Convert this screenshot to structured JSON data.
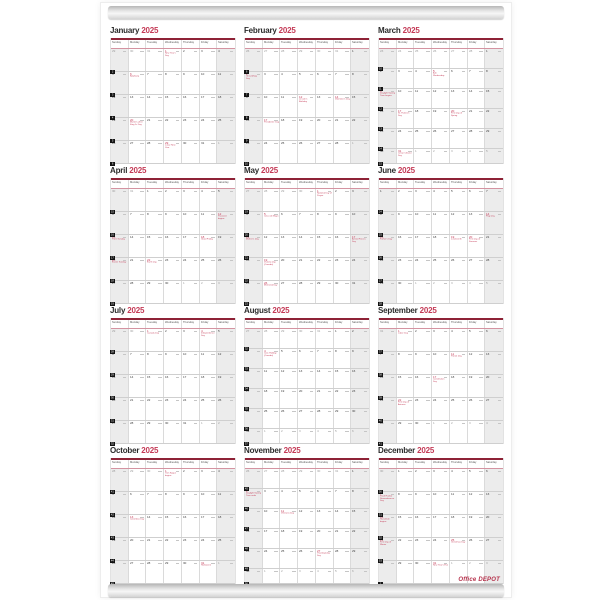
{
  "brand": "Office DEPOT",
  "year": "2025",
  "colors": {
    "accent_red": "#c43a56",
    "header_rule": "#8e2236",
    "badge_bg": "#141414",
    "weekend_bg": "#ececec",
    "grid_line": "#cfcfcf",
    "out_month_text": "#9b9b9b"
  },
  "day_headers": [
    "Sunday",
    "Monday",
    "Tuesday",
    "Wednesday",
    "Thursday",
    "Friday",
    "Saturday"
  ],
  "months": [
    {
      "name": "January",
      "year": "2025",
      "badges": [
        2,
        3,
        4,
        5,
        6
      ],
      "weeks": [
        [
          "o29",
          "o30",
          "o31",
          [
            1,
            "New Year's Day"
          ],
          2,
          3,
          4
        ],
        [
          5,
          [
            6,
            "Epiphany"
          ],
          7,
          8,
          9,
          10,
          11
        ],
        [
          12,
          13,
          14,
          15,
          16,
          17,
          18
        ],
        [
          19,
          [
            20,
            "Martin Luther King Jr. Day"
          ],
          21,
          22,
          23,
          24,
          25
        ],
        [
          26,
          27,
          28,
          [
            29,
            "Lunar New Year"
          ],
          30,
          31,
          "o1"
        ]
      ]
    },
    {
      "name": "February",
      "year": "2025",
      "badges": [
        6,
        7,
        8,
        9,
        10
      ],
      "weeks": [
        [
          "o26",
          "o27",
          "o28",
          "o29",
          "o30",
          "o31",
          1
        ],
        [
          [
            2,
            "Groundhog Day"
          ],
          3,
          4,
          5,
          6,
          7,
          8
        ],
        [
          9,
          10,
          11,
          [
            12,
            "Lincoln's Birthday"
          ],
          13,
          [
            14,
            "Valentine's Day"
          ],
          15
        ],
        [
          16,
          [
            17,
            "Presidents' Day"
          ],
          18,
          19,
          20,
          21,
          22
        ],
        [
          23,
          24,
          25,
          26,
          27,
          28,
          "o1"
        ]
      ]
    },
    {
      "name": "March",
      "year": "2025",
      "badges": [
        10,
        11,
        12,
        13,
        14,
        15
      ],
      "weeks": [
        [
          "o23",
          "o24",
          "o25",
          "o26",
          "o27",
          "o28",
          1
        ],
        [
          2,
          3,
          4,
          [
            5,
            "Ash Wednesday"
          ],
          6,
          7,
          8
        ],
        [
          [
            9,
            "Daylight Saving Time begins"
          ],
          10,
          11,
          12,
          13,
          14,
          15
        ],
        [
          16,
          [
            17,
            "St. Patrick's Day"
          ],
          18,
          19,
          [
            20,
            "First Day of Spring"
          ],
          21,
          22
        ],
        [
          23,
          24,
          25,
          26,
          27,
          28,
          29
        ],
        [
          30,
          [
            31,
            "César Chávez Day"
          ],
          "o1",
          "o2",
          "o3",
          "o4",
          "o5"
        ]
      ]
    },
    {
      "name": "April",
      "year": "2025",
      "badges": [
        15,
        16,
        17,
        18,
        19
      ],
      "weeks": [
        [
          "o30",
          "o31",
          1,
          2,
          3,
          4,
          5
        ],
        [
          6,
          7,
          8,
          9,
          10,
          11,
          [
            12,
            "Passover begins"
          ]
        ],
        [
          [
            13,
            "Palm Sunday"
          ],
          14,
          15,
          16,
          17,
          [
            18,
            "Good Friday"
          ],
          19
        ],
        [
          [
            20,
            "Easter Sunday"
          ],
          21,
          [
            22,
            "Earth Day"
          ],
          23,
          24,
          25,
          26
        ],
        [
          27,
          28,
          29,
          30,
          "o1",
          "o2",
          "o3"
        ]
      ]
    },
    {
      "name": "May",
      "year": "2025",
      "badges": [
        19,
        20,
        21,
        22,
        23
      ],
      "weeks": [
        [
          "o27",
          "o28",
          "o29",
          "o30",
          [
            1,
            "National Day of Prayer"
          ],
          2,
          3
        ],
        [
          4,
          [
            5,
            "Cinco de Mayo"
          ],
          6,
          7,
          8,
          9,
          10
        ],
        [
          [
            11,
            "Mother's Day"
          ],
          12,
          13,
          14,
          15,
          16,
          [
            17,
            "Armed Forces Day"
          ]
        ],
        [
          18,
          [
            19,
            "Victoria Day (Canada)"
          ],
          20,
          21,
          22,
          23,
          24
        ],
        [
          25,
          [
            26,
            "Memorial Day"
          ],
          27,
          28,
          29,
          30,
          31
        ]
      ]
    },
    {
      "name": "June",
      "year": "2025",
      "badges": [
        24,
        25,
        26,
        27,
        28
      ],
      "weeks": [
        [
          1,
          2,
          3,
          4,
          5,
          6,
          7
        ],
        [
          8,
          9,
          10,
          11,
          12,
          13,
          [
            14,
            "Flag Day"
          ]
        ],
        [
          [
            15,
            "Father's Day"
          ],
          16,
          17,
          18,
          [
            19,
            "Juneteenth"
          ],
          [
            20,
            "First Day of Summer"
          ],
          21
        ],
        [
          22,
          23,
          24,
          25,
          26,
          27,
          28
        ],
        [
          29,
          30,
          "o1",
          "o2",
          "o3",
          "o4",
          "o5"
        ]
      ]
    },
    {
      "name": "July",
      "year": "2025",
      "badges": [
        28,
        29,
        30,
        31,
        32
      ],
      "weeks": [
        [
          "o29",
          "o30",
          [
            1,
            "Canada Day"
          ],
          2,
          3,
          [
            4,
            "Independence Day"
          ],
          5
        ],
        [
          6,
          7,
          8,
          9,
          10,
          11,
          12
        ],
        [
          13,
          14,
          15,
          16,
          17,
          18,
          19
        ],
        [
          20,
          21,
          22,
          23,
          24,
          25,
          26
        ],
        [
          27,
          28,
          29,
          30,
          31,
          "o1",
          "o2"
        ]
      ]
    },
    {
      "name": "August",
      "year": "2025",
      "badges": [
        32,
        33,
        34,
        35,
        36,
        37
      ],
      "weeks": [
        [
          "o27",
          "o28",
          "o29",
          "o30",
          "o31",
          1,
          2
        ],
        [
          3,
          [
            4,
            "Civic Holiday (Canada)"
          ],
          5,
          6,
          7,
          8,
          9
        ],
        [
          10,
          11,
          12,
          13,
          14,
          15,
          16
        ],
        [
          17,
          18,
          19,
          20,
          21,
          22,
          23
        ],
        [
          24,
          25,
          26,
          27,
          28,
          29,
          30
        ],
        [
          31,
          "o1",
          "o2",
          "o3",
          "o4",
          "o5",
          "o6"
        ]
      ]
    },
    {
      "name": "September",
      "year": "2025",
      "badges": [
        37,
        38,
        39,
        40,
        41
      ],
      "weeks": [
        [
          "o31",
          [
            1,
            "Labor Day"
          ],
          2,
          3,
          4,
          5,
          6
        ],
        [
          7,
          8,
          9,
          10,
          [
            11,
            "Patriot Day"
          ],
          12,
          13
        ],
        [
          14,
          15,
          16,
          [
            17,
            "Constitution Day"
          ],
          18,
          19,
          20
        ],
        [
          21,
          [
            22,
            "First Day of Autumn"
          ],
          23,
          24,
          25,
          26,
          27
        ],
        [
          28,
          29,
          30,
          "o1",
          "o2",
          "o3",
          "o4"
        ]
      ]
    },
    {
      "name": "October",
      "year": "2025",
      "badges": [
        41,
        42,
        43,
        44,
        45
      ],
      "weeks": [
        [
          "o28",
          "o29",
          "o30",
          [
            1,
            "Yom Kippur begins"
          ],
          2,
          3,
          4
        ],
        [
          5,
          6,
          7,
          8,
          9,
          10,
          11
        ],
        [
          12,
          [
            13,
            "Columbus Day"
          ],
          14,
          15,
          16,
          17,
          18
        ],
        [
          19,
          20,
          21,
          22,
          23,
          24,
          25
        ],
        [
          26,
          27,
          28,
          29,
          30,
          [
            31,
            "Halloween"
          ],
          "o1"
        ]
      ]
    },
    {
      "name": "November",
      "year": "2025",
      "badges": [
        45,
        46,
        47,
        48,
        49,
        50
      ],
      "weeks": [
        [
          "o26",
          "o27",
          "o28",
          "o29",
          "o30",
          "o31",
          1
        ],
        [
          [
            2,
            "Daylight Saving Time ends"
          ],
          3,
          4,
          5,
          6,
          7,
          8
        ],
        [
          9,
          10,
          [
            11,
            "Veterans Day"
          ],
          12,
          13,
          14,
          15
        ],
        [
          16,
          17,
          18,
          19,
          20,
          21,
          22
        ],
        [
          23,
          24,
          25,
          26,
          [
            27,
            "Thanksgiving Day"
          ],
          28,
          29
        ],
        [
          30,
          "o1",
          "o2",
          "o3",
          "o4",
          "o5",
          "o6"
        ]
      ]
    },
    {
      "name": "December",
      "year": "2025",
      "badges": [
        50,
        51,
        52,
        53,
        1
      ],
      "weeks": [
        [
          "o30",
          1,
          2,
          3,
          4,
          5,
          6
        ],
        [
          [
            7,
            "Pearl Harbor Remembrance Day"
          ],
          8,
          9,
          10,
          11,
          12,
          13
        ],
        [
          [
            14,
            "Hanukkah begins"
          ],
          15,
          16,
          17,
          18,
          19,
          20
        ],
        [
          [
            21,
            "First Day of Winter"
          ],
          22,
          23,
          24,
          [
            25,
            "Christmas Day"
          ],
          26,
          27
        ],
        [
          28,
          29,
          30,
          [
            31,
            "New Year's Eve"
          ],
          "o1",
          "o2",
          "o3"
        ]
      ]
    }
  ]
}
